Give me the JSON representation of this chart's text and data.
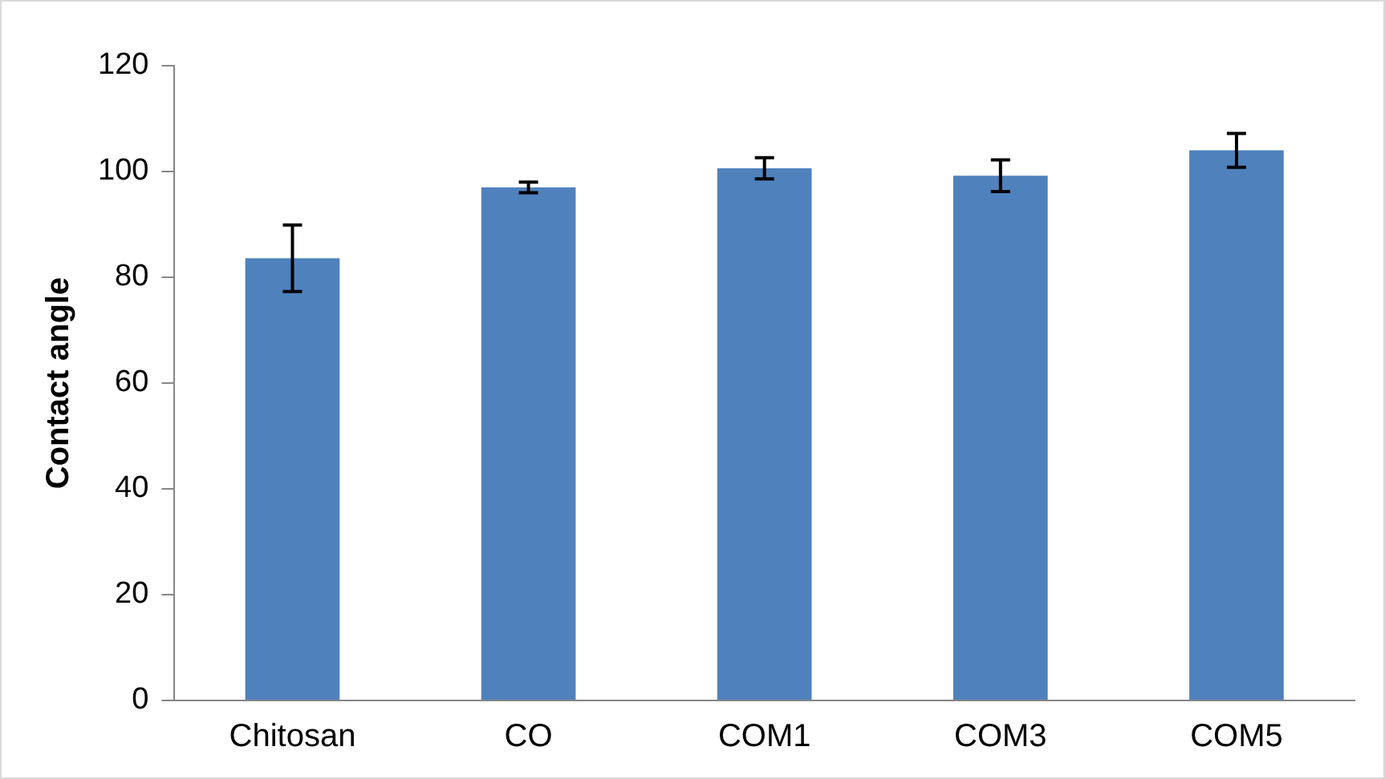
{
  "chart_data": {
    "type": "bar",
    "ylabel": "Contact angle",
    "categories": [
      "Chitosan",
      "CO",
      "COM1",
      "COM3",
      "COM5"
    ],
    "values": [
      83.6,
      97,
      100.6,
      99.2,
      104
    ],
    "errors": [
      6.3,
      1,
      2,
      3,
      3.2
    ],
    "color": "#4f81bd",
    "ylim": [
      0,
      120
    ],
    "yticks": [
      0,
      20,
      40,
      60,
      80,
      100,
      120
    ],
    "grid": false,
    "legend": false
  }
}
